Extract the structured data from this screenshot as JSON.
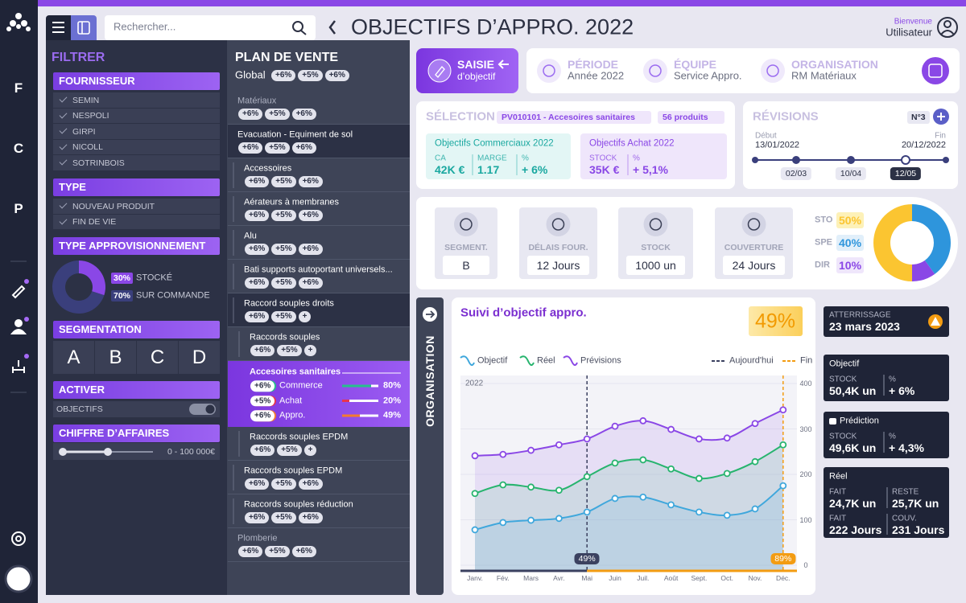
{
  "sidebar": {
    "letters": [
      "F",
      "C",
      "P"
    ]
  },
  "search": {
    "placeholder": "Rechercher..."
  },
  "header": {
    "title": "OBJECTIFS D’APPRO. 2022",
    "greeting": "Bienvenue",
    "user": "Utilisateur"
  },
  "filters": {
    "title": "FILTRER",
    "groups": [
      {
        "title": "FOURNISSEUR",
        "items": [
          "SEMIN",
          "NESPOLI",
          "GIRPI",
          "NICOLL",
          "SOTRINBOIS"
        ]
      },
      {
        "title": "TYPE",
        "items": [
          "NOUVEAU PRODUIT",
          "FIN DE VIE"
        ]
      }
    ],
    "supply_type": {
      "title": "TYPE APPROVISIONNEMENT",
      "chart": {
        "type": "pie",
        "categories": [
          "STOCKÉ",
          "SUR COMMANDE"
        ],
        "values": [
          30,
          70
        ],
        "value_labels": [
          "30%",
          "70%"
        ],
        "colors": [
          "#8a47e6",
          "#3a3f7c"
        ]
      }
    },
    "segmentation": {
      "title": "SEGMENTATION",
      "items": [
        "A",
        "B",
        "C",
        "D"
      ]
    },
    "activate": {
      "title": "ACTIVER",
      "toggle": "OBJECTIFS"
    },
    "revenue": {
      "title": "CHIFFRE D’AFFAIRES",
      "range": "0 - 100 000€"
    }
  },
  "plan": {
    "title": "PLAN DE VENTE",
    "global": {
      "label": "Global",
      "tags": [
        "+6%",
        "+5%",
        "+6%"
      ]
    },
    "rows": [
      {
        "label": "Matériaux",
        "tags": [
          "+6%",
          "+5%",
          "+6%"
        ]
      },
      {
        "label": "Evacuation - Equiment de sol",
        "tags": [
          "+6%",
          "+5%",
          "+6%"
        ],
        "children": [
          {
            "label": "Accessoires",
            "tags": [
              "+6%",
              "+5%",
              "+6%"
            ]
          },
          {
            "label": "Aérateurs à membranes",
            "tags": [
              "+6%",
              "+5%",
              "+6%"
            ]
          },
          {
            "label": "Alu",
            "tags": [
              "+6%",
              "+5%",
              "+6%"
            ]
          },
          {
            "label": "Bati supports autoportant universels...",
            "tags": [
              "+6%",
              "+5%",
              "+6%"
            ]
          },
          {
            "label": "Raccord souples droits",
            "tags": [
              "+6%",
              "+5%",
              "+"
            ],
            "children": [
              {
                "label": "Raccords souples",
                "tags": [
                  "+6%",
                  "+5%",
                  "+"
                ]
              },
              {
                "label": "Accesoires sanitaires",
                "selected": true,
                "details": [
                  {
                    "tag": "+6%",
                    "label": "Commerce",
                    "value": 80,
                    "value_label": "80%",
                    "color": "#27c08c"
                  },
                  {
                    "tag": "+5%",
                    "label": "Achat",
                    "value": 20,
                    "value_label": "20%",
                    "color": "#e8344e"
                  },
                  {
                    "tag": "+6%",
                    "label": "Appro.",
                    "value": 49,
                    "value_label": "49%",
                    "color": "#f47b30"
                  }
                ]
              },
              {
                "label": "Raccords souples EPDM",
                "tags": [
                  "+6%",
                  "+5%",
                  "+"
                ]
              }
            ]
          },
          {
            "label": "Raccords souples EPDM",
            "tags": [
              "+6%",
              "+5%",
              "+6%"
            ]
          },
          {
            "label": "Raccords souples réduction",
            "tags": [
              "+6%",
              "+5%",
              "+6%"
            ]
          }
        ]
      },
      {
        "label": "Plomberie",
        "tags": [
          "+6%",
          "+5%",
          "+6%"
        ]
      }
    ]
  },
  "actions": {
    "entry": {
      "title": "SAISIE",
      "subtitle": "d’objectif"
    },
    "info": [
      {
        "label": "PÉRIODE",
        "value": "Année 2022"
      },
      {
        "label": "ÉQUIPE",
        "value": "Service Appro."
      },
      {
        "label": "ORGANISATION",
        "value": "RM Matériaux"
      }
    ]
  },
  "selection": {
    "title": "SÉLECTION",
    "code": "PV010101 - Accesoires sanitaires",
    "count": "56 produits",
    "cards": [
      {
        "title": "Objectifs Commerciaux 2022",
        "metrics": [
          {
            "label": "CA",
            "value": "42K €"
          },
          {
            "label": "MARGE",
            "value": "1.17"
          },
          {
            "label": "%",
            "value": "+ 6%"
          }
        ]
      },
      {
        "title": "Objectifs Achat 2022",
        "metrics": [
          {
            "label": "STOCK",
            "value": "35K €"
          },
          {
            "label": "%",
            "value": "+ 5,1%"
          }
        ]
      }
    ]
  },
  "revisions": {
    "title": "RÉVISIONS",
    "number": "N°3",
    "start_label": "Début",
    "start": "13/01/2022",
    "end_label": "Fin",
    "end": "20/12/2022",
    "milestones": [
      "02/03",
      "10/04",
      "12/05"
    ]
  },
  "kpis": [
    {
      "label": "SEGMENT.",
      "value": "B"
    },
    {
      "label": "DÉLAIS FOUR.",
      "value": "12 Jours"
    },
    {
      "label": "STOCK",
      "value": "1000 un"
    },
    {
      "label": "COUVERTURE",
      "value": "24 Jours"
    }
  ],
  "mix": {
    "type": "pie",
    "categories": [
      "STO",
      "SPE",
      "DIR"
    ],
    "values": [
      50,
      40,
      10
    ],
    "value_labels": [
      "50%",
      "40%",
      "10%"
    ],
    "colors": [
      "#fbc531",
      "#2e95dc",
      "#8a47e6"
    ]
  },
  "tracking": {
    "tab": "ORGANISATION",
    "title": "Suivi d’objectif appro.",
    "score": "49%",
    "chart": {
      "type": "line",
      "year": "2022",
      "categories": [
        "Janv.",
        "Fév.",
        "Mars",
        "Avr.",
        "Mai",
        "Juin",
        "Juil.",
        "Août",
        "Sept.",
        "Oct.",
        "Nov.",
        "Déc."
      ],
      "series": [
        {
          "name": "Objectif",
          "color": "#3fa7dc",
          "values": [
            78,
            94,
            99,
            103,
            117,
            147,
            150,
            133,
            117,
            110,
            124,
            175
          ]
        },
        {
          "name": "Réel",
          "color": "#27b46e",
          "values": [
            158,
            177,
            172,
            165,
            195,
            225,
            232,
            212,
            191,
            202,
            228,
            265
          ]
        },
        {
          "name": "Prévisions",
          "color": "#8a47e6",
          "values": [
            241,
            244,
            253,
            265,
            278,
            306,
            318,
            299,
            278,
            280,
            312,
            342
          ]
        }
      ],
      "ylim": [
        0,
        400
      ],
      "yticks": [
        0,
        100,
        200,
        300,
        400
      ],
      "markers": [
        {
          "name": "Aujourd'hui",
          "category": "Mai",
          "label": "49%",
          "color": "#3b4160"
        },
        {
          "name": "Fin",
          "category": "Déc.",
          "label": "89%",
          "color": "#f39c12"
        }
      ]
    }
  },
  "summary": {
    "landing": {
      "label": "ATTERRISSAGE",
      "value": "23 mars 2023"
    },
    "cards": [
      {
        "title": "Objectif",
        "metrics": [
          {
            "label": "STOCK",
            "value": "50,4K un"
          },
          {
            "label": "%",
            "value": "+ 6%"
          }
        ]
      },
      {
        "title": "Prédiction",
        "metrics": [
          {
            "label": "STOCK",
            "value": "49,6K un"
          },
          {
            "label": "%",
            "value": "+ 4,3%"
          }
        ]
      },
      {
        "title": "Réel",
        "metrics": [
          {
            "label": "FAIT",
            "value": "24,7K un"
          },
          {
            "label": "RESTE",
            "value": "25,7K un"
          },
          {
            "label": "FAIT",
            "value": "222 Jours"
          },
          {
            "label": "COUV.",
            "value": "231 Jours"
          }
        ]
      }
    ]
  }
}
